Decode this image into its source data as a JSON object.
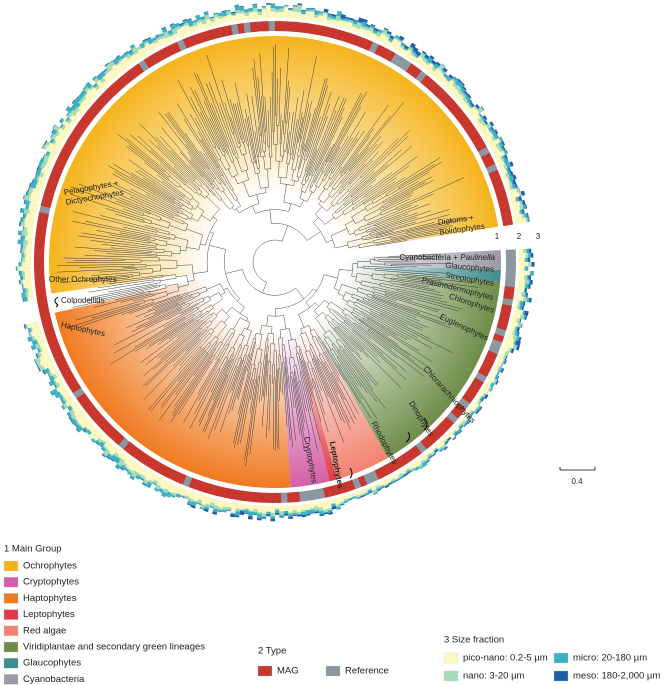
{
  "clades": [
    {
      "lines": [
        "Pelagophytes +",
        "Dictyochophytes"
      ]
    },
    {
      "lines": [
        "Other Ochrophytes"
      ]
    },
    {
      "lines": [
        "Colpodellids"
      ]
    },
    {
      "lines": [
        "Haptophytes"
      ]
    },
    {
      "lines": [
        "Diatoms +",
        "Bolidophytes"
      ]
    },
    {
      "lines": [
        "Cyanobacteria +"
      ],
      "italic": "Paulinella"
    },
    {
      "lines": [
        "Glaucophytes"
      ]
    },
    {
      "lines": [
        "Streptophytes"
      ]
    },
    {
      "lines": [
        "Prasinodermophytes"
      ]
    },
    {
      "lines": [
        "Chlorophytes"
      ]
    },
    {
      "lines": [
        "Euglenophytes"
      ]
    },
    {
      "lines": [
        "Chlorarachniophytes"
      ]
    },
    {
      "lines": [
        "Dinophytes"
      ]
    },
    {
      "lines": [
        "Rhodophytes"
      ]
    },
    {
      "lines": [
        "Leptophytes"
      ],
      "bold": true
    },
    {
      "lines": [
        "Cryptophytes"
      ]
    }
  ],
  "ring_labels": [
    "1",
    "2",
    "3"
  ],
  "scale_bar": "0.4",
  "legend_main": {
    "title": "1 Main Group",
    "items": [
      {
        "label": "Ochrophytes",
        "color": "#f5b41c"
      },
      {
        "label": "Cryptophytes",
        "color": "#d35fa6"
      },
      {
        "label": "Haptophytes",
        "color": "#f07a20"
      },
      {
        "label": "Leptophytes",
        "color": "#e03a44"
      },
      {
        "label": "Red algae",
        "color": "#f38370"
      },
      {
        "label": "Viridiplantae and secondary green lineages",
        "color": "#6e8d48"
      },
      {
        "label": "Glaucophytes",
        "color": "#3f8b8e"
      },
      {
        "label": "Cyanobacteria",
        "color": "#9b9aa6"
      }
    ]
  },
  "legend_type": {
    "title": "2 Type",
    "items": [
      {
        "label": "MAG",
        "color": "#c8372d"
      },
      {
        "label": "Reference",
        "color": "#8b98a2"
      }
    ]
  },
  "legend_size": {
    "title": "3 Size fraction",
    "items": [
      {
        "label": "pico-nano: 0.2-5 µm",
        "color": "#fdf8c2"
      },
      {
        "label": "nano: 3-20 µm",
        "color": "#a6dbb6"
      },
      {
        "label": "micro: 20-180 µm",
        "color": "#3cb2c4"
      },
      {
        "label": "meso: 180-2,000 µm",
        "color": "#1f5ea8"
      }
    ]
  }
}
